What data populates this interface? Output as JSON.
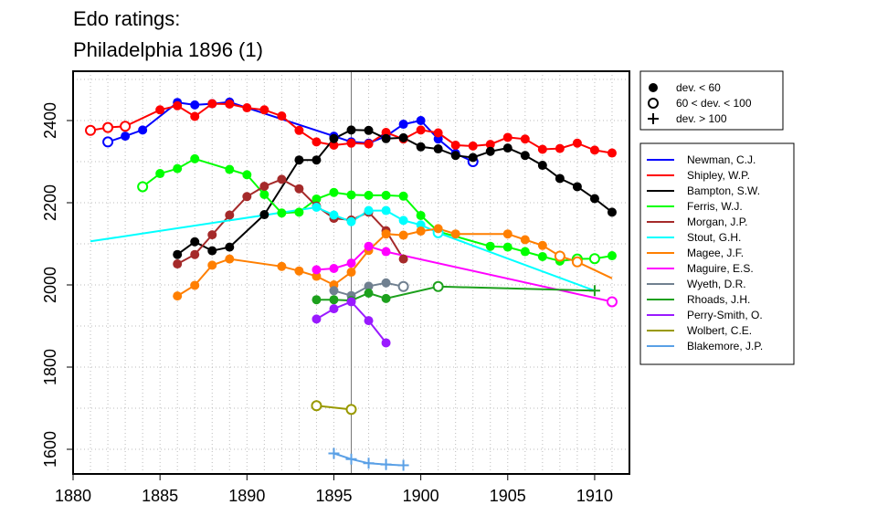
{
  "chart_data": {
    "type": "line",
    "title_line1": "Edo ratings:",
    "title_line2": "Philadelphia 1896 (1)",
    "xlabel": "",
    "ylabel": "",
    "xlim": [
      1880,
      1912
    ],
    "ylim": [
      1540,
      2520
    ],
    "x_ticks": [
      1880,
      1885,
      1890,
      1895,
      1900,
      1905,
      1910
    ],
    "y_ticks": [
      1600,
      1800,
      2000,
      2200,
      2400
    ],
    "grid": "dotted",
    "marker_year": 1896,
    "marker_legend": [
      {
        "symbol": "filled",
        "label": "dev. < 60"
      },
      {
        "symbol": "open",
        "label": "60 < dev. < 100"
      },
      {
        "symbol": "plus",
        "label": "dev. > 100"
      }
    ],
    "series": [
      {
        "name": "Newman, C.J.",
        "color": "#0000ff",
        "points": [
          {
            "x": 1882,
            "y": 2348,
            "m": "o"
          },
          {
            "x": 1883,
            "y": 2362,
            "m": "f"
          },
          {
            "x": 1884,
            "y": 2377,
            "m": "f"
          },
          {
            "x": 1886,
            "y": 2444,
            "m": "f"
          },
          {
            "x": 1887,
            "y": 2438,
            "m": "f"
          },
          {
            "x": 1888,
            "y": 2441,
            "m": "f"
          },
          {
            "x": 1889,
            "y": 2445,
            "m": "f"
          },
          {
            "x": 1895,
            "y": 2362,
            "m": "f"
          },
          {
            "x": 1896,
            "y": 2348,
            "m": "f"
          },
          {
            "x": 1897,
            "y": 2345,
            "m": "f"
          },
          {
            "x": 1898,
            "y": 2362,
            "m": "f"
          },
          {
            "x": 1899,
            "y": 2391,
            "m": "f"
          },
          {
            "x": 1900,
            "y": 2400,
            "m": "f"
          },
          {
            "x": 1901,
            "y": 2355,
            "m": "f"
          },
          {
            "x": 1902,
            "y": 2320,
            "m": "f"
          },
          {
            "x": 1903,
            "y": 2300,
            "m": "o"
          }
        ]
      },
      {
        "name": "Shipley, W.P.",
        "color": "#ff0000",
        "points": [
          {
            "x": 1881,
            "y": 2376,
            "m": "o"
          },
          {
            "x": 1882,
            "y": 2383,
            "m": "o"
          },
          {
            "x": 1883,
            "y": 2386,
            "m": "o"
          },
          {
            "x": 1885,
            "y": 2426,
            "m": "f"
          },
          {
            "x": 1886,
            "y": 2436,
            "m": "f"
          },
          {
            "x": 1887,
            "y": 2410,
            "m": "f"
          },
          {
            "x": 1888,
            "y": 2441,
            "m": "f"
          },
          {
            "x": 1889,
            "y": 2440,
            "m": "f"
          },
          {
            "x": 1890,
            "y": 2431,
            "m": "f"
          },
          {
            "x": 1891,
            "y": 2426,
            "m": "f"
          },
          {
            "x": 1892,
            "y": 2411,
            "m": "f"
          },
          {
            "x": 1893,
            "y": 2376,
            "m": "f"
          },
          {
            "x": 1894,
            "y": 2348,
            "m": "f"
          },
          {
            "x": 1895,
            "y": 2340,
            "m": "f"
          },
          {
            "x": 1896,
            "y": 2345,
            "m": "f"
          },
          {
            "x": 1897,
            "y": 2343,
            "m": "f"
          },
          {
            "x": 1898,
            "y": 2371,
            "m": "f"
          },
          {
            "x": 1899,
            "y": 2355,
            "m": "f"
          },
          {
            "x": 1900,
            "y": 2377,
            "m": "f"
          },
          {
            "x": 1901,
            "y": 2370,
            "m": "f"
          },
          {
            "x": 1902,
            "y": 2340,
            "m": "f"
          },
          {
            "x": 1903,
            "y": 2338,
            "m": "f"
          },
          {
            "x": 1904,
            "y": 2342,
            "m": "f"
          },
          {
            "x": 1905,
            "y": 2359,
            "m": "f"
          },
          {
            "x": 1906,
            "y": 2355,
            "m": "f"
          },
          {
            "x": 1907,
            "y": 2330,
            "m": "f"
          },
          {
            "x": 1908,
            "y": 2332,
            "m": "f"
          },
          {
            "x": 1909,
            "y": 2345,
            "m": "f"
          },
          {
            "x": 1910,
            "y": 2328,
            "m": "f"
          },
          {
            "x": 1911,
            "y": 2321,
            "m": "f"
          }
        ]
      },
      {
        "name": "Bampton, S.W.",
        "color": "#000000",
        "points": [
          {
            "x": 1886,
            "y": 2074,
            "m": "f"
          },
          {
            "x": 1887,
            "y": 2105,
            "m": "f"
          },
          {
            "x": 1888,
            "y": 2083,
            "m": "f"
          },
          {
            "x": 1889,
            "y": 2092,
            "m": "f"
          },
          {
            "x": 1891,
            "y": 2171,
            "m": "f"
          },
          {
            "x": 1893,
            "y": 2304,
            "m": "f"
          },
          {
            "x": 1894,
            "y": 2304,
            "m": "f"
          },
          {
            "x": 1895,
            "y": 2356,
            "m": "f"
          },
          {
            "x": 1896,
            "y": 2377,
            "m": "f"
          },
          {
            "x": 1897,
            "y": 2376,
            "m": "f"
          },
          {
            "x": 1898,
            "y": 2356,
            "m": "f"
          },
          {
            "x": 1899,
            "y": 2358,
            "m": "f"
          },
          {
            "x": 1900,
            "y": 2336,
            "m": "f"
          },
          {
            "x": 1901,
            "y": 2331,
            "m": "f"
          },
          {
            "x": 1902,
            "y": 2315,
            "m": "f"
          },
          {
            "x": 1903,
            "y": 2310,
            "m": "f"
          },
          {
            "x": 1904,
            "y": 2325,
            "m": "f"
          },
          {
            "x": 1905,
            "y": 2333,
            "m": "f"
          },
          {
            "x": 1906,
            "y": 2315,
            "m": "f"
          },
          {
            "x": 1907,
            "y": 2291,
            "m": "f"
          },
          {
            "x": 1908,
            "y": 2259,
            "m": "f"
          },
          {
            "x": 1909,
            "y": 2239,
            "m": "f"
          },
          {
            "x": 1910,
            "y": 2210,
            "m": "f"
          },
          {
            "x": 1911,
            "y": 2177,
            "m": "f"
          }
        ]
      },
      {
        "name": "Ferris, W.J.",
        "color": "#00ff00",
        "points": [
          {
            "x": 1884,
            "y": 2239,
            "m": "o"
          },
          {
            "x": 1885,
            "y": 2271,
            "m": "f"
          },
          {
            "x": 1886,
            "y": 2283,
            "m": "f"
          },
          {
            "x": 1887,
            "y": 2307,
            "m": "f"
          },
          {
            "x": 1889,
            "y": 2281,
            "m": "f"
          },
          {
            "x": 1890,
            "y": 2268,
            "m": "f"
          },
          {
            "x": 1891,
            "y": 2220,
            "m": "f"
          },
          {
            "x": 1892,
            "y": 2175,
            "m": "f"
          },
          {
            "x": 1893,
            "y": 2177,
            "m": "f"
          },
          {
            "x": 1894,
            "y": 2209,
            "m": "f"
          },
          {
            "x": 1895,
            "y": 2225,
            "m": "f"
          },
          {
            "x": 1896,
            "y": 2219,
            "m": "f"
          },
          {
            "x": 1897,
            "y": 2218,
            "m": "f"
          },
          {
            "x": 1898,
            "y": 2218,
            "m": "f"
          },
          {
            "x": 1899,
            "y": 2216,
            "m": "f"
          },
          {
            "x": 1900,
            "y": 2169,
            "m": "f"
          },
          {
            "x": 1901,
            "y": 2130,
            "m": "f"
          },
          {
            "x": 1904,
            "y": 2094,
            "m": "f"
          },
          {
            "x": 1905,
            "y": 2092,
            "m": "f"
          },
          {
            "x": 1906,
            "y": 2081,
            "m": "f"
          },
          {
            "x": 1907,
            "y": 2069,
            "m": "f"
          },
          {
            "x": 1908,
            "y": 2058,
            "m": "f"
          },
          {
            "x": 1909,
            "y": 2063,
            "m": "o"
          },
          {
            "x": 1910,
            "y": 2064,
            "m": "o"
          },
          {
            "x": 1911,
            "y": 2071,
            "m": "f"
          }
        ]
      },
      {
        "name": "Morgan, J.P.",
        "color": "#a52a2a",
        "points": [
          {
            "x": 1886,
            "y": 2051,
            "m": "f"
          },
          {
            "x": 1887,
            "y": 2074,
            "m": "f"
          },
          {
            "x": 1888,
            "y": 2122,
            "m": "f"
          },
          {
            "x": 1889,
            "y": 2170,
            "m": "f"
          },
          {
            "x": 1890,
            "y": 2215,
            "m": "f"
          },
          {
            "x": 1891,
            "y": 2240,
            "m": "f"
          },
          {
            "x": 1892,
            "y": 2257,
            "m": "f"
          },
          {
            "x": 1893,
            "y": 2234,
            "m": "f"
          },
          {
            "x": 1894,
            "y": 2192,
            "m": "f"
          },
          {
            "x": 1895,
            "y": 2162,
            "m": "f"
          },
          {
            "x": 1896,
            "y": 2158,
            "m": "f"
          },
          {
            "x": 1897,
            "y": 2177,
            "m": "f"
          },
          {
            "x": 1898,
            "y": 2132,
            "m": "f"
          },
          {
            "x": 1899,
            "y": 2063,
            "m": "f"
          }
        ]
      },
      {
        "name": "Stout, G.H.",
        "color": "#00ffff",
        "points": [
          {
            "x": 1881,
            "y": 2106,
            "m": "l"
          },
          {
            "x": 1894,
            "y": 2189,
            "m": "f"
          },
          {
            "x": 1895,
            "y": 2170,
            "m": "f"
          },
          {
            "x": 1896,
            "y": 2154,
            "m": "f"
          },
          {
            "x": 1897,
            "y": 2181,
            "m": "f"
          },
          {
            "x": 1898,
            "y": 2181,
            "m": "f"
          },
          {
            "x": 1899,
            "y": 2157,
            "m": "f"
          },
          {
            "x": 1900,
            "y": 2146,
            "m": "f"
          },
          {
            "x": 1901,
            "y": 2127,
            "m": "o"
          },
          {
            "x": 1910,
            "y": 1986,
            "m": "l"
          }
        ]
      },
      {
        "name": "Magee, J.F.",
        "color": "#ff7f00",
        "points": [
          {
            "x": 1886,
            "y": 1973,
            "m": "f"
          },
          {
            "x": 1887,
            "y": 1999,
            "m": "f"
          },
          {
            "x": 1888,
            "y": 2048,
            "m": "f"
          },
          {
            "x": 1889,
            "y": 2063,
            "m": "f"
          },
          {
            "x": 1892,
            "y": 2045,
            "m": "f"
          },
          {
            "x": 1893,
            "y": 2034,
            "m": "f"
          },
          {
            "x": 1894,
            "y": 2021,
            "m": "f"
          },
          {
            "x": 1895,
            "y": 2000,
            "m": "f"
          },
          {
            "x": 1896,
            "y": 2031,
            "m": "f"
          },
          {
            "x": 1897,
            "y": 2084,
            "m": "f"
          },
          {
            "x": 1898,
            "y": 2124,
            "m": "f"
          },
          {
            "x": 1899,
            "y": 2121,
            "m": "f"
          },
          {
            "x": 1900,
            "y": 2131,
            "m": "f"
          },
          {
            "x": 1901,
            "y": 2137,
            "m": "f"
          },
          {
            "x": 1902,
            "y": 2124,
            "m": "f"
          },
          {
            "x": 1905,
            "y": 2124,
            "m": "f"
          },
          {
            "x": 1906,
            "y": 2110,
            "m": "f"
          },
          {
            "x": 1907,
            "y": 2096,
            "m": "f"
          },
          {
            "x": 1908,
            "y": 2070,
            "m": "o"
          },
          {
            "x": 1909,
            "y": 2056,
            "m": "o"
          },
          {
            "x": 1911,
            "y": 2016,
            "m": "l"
          }
        ]
      },
      {
        "name": "Maguire, E.S.",
        "color": "#ff00ff",
        "points": [
          {
            "x": 1894,
            "y": 2037,
            "m": "f"
          },
          {
            "x": 1895,
            "y": 2040,
            "m": "f"
          },
          {
            "x": 1896,
            "y": 2053,
            "m": "f"
          },
          {
            "x": 1897,
            "y": 2094,
            "m": "f"
          },
          {
            "x": 1898,
            "y": 2081,
            "m": "f"
          },
          {
            "x": 1911,
            "y": 1959,
            "m": "o"
          }
        ]
      },
      {
        "name": "Wyeth, D.R.",
        "color": "#708090",
        "points": [
          {
            "x": 1895,
            "y": 1986,
            "m": "f"
          },
          {
            "x": 1896,
            "y": 1974,
            "m": "f"
          },
          {
            "x": 1897,
            "y": 1997,
            "m": "f"
          },
          {
            "x": 1898,
            "y": 2005,
            "m": "f"
          },
          {
            "x": 1899,
            "y": 1996,
            "m": "o"
          }
        ]
      },
      {
        "name": "Rhoads, J.H.",
        "color": "#1ca01c",
        "points": [
          {
            "x": 1894,
            "y": 1964,
            "m": "f"
          },
          {
            "x": 1895,
            "y": 1964,
            "m": "f"
          },
          {
            "x": 1896,
            "y": 1962,
            "m": "f"
          },
          {
            "x": 1897,
            "y": 1980,
            "m": "f"
          },
          {
            "x": 1898,
            "y": 1967,
            "m": "f"
          },
          {
            "x": 1901,
            "y": 1996,
            "m": "o"
          },
          {
            "x": 1910,
            "y": 1986,
            "m": "p"
          }
        ]
      },
      {
        "name": "Perry-Smith, O.",
        "color": "#9a1aff",
        "points": [
          {
            "x": 1894,
            "y": 1917,
            "m": "f"
          },
          {
            "x": 1895,
            "y": 1942,
            "m": "f"
          },
          {
            "x": 1896,
            "y": 1959,
            "m": "f"
          },
          {
            "x": 1897,
            "y": 1913,
            "m": "f"
          },
          {
            "x": 1898,
            "y": 1859,
            "m": "f"
          }
        ]
      },
      {
        "name": "Wolbert, C.E.",
        "color": "#999900",
        "points": [
          {
            "x": 1894,
            "y": 1706,
            "m": "o"
          },
          {
            "x": 1896,
            "y": 1697,
            "m": "o"
          }
        ]
      },
      {
        "name": "Blakemore, J.P.",
        "color": "#5aa0e6",
        "points": [
          {
            "x": 1895,
            "y": 1590,
            "m": "p"
          },
          {
            "x": 1896,
            "y": 1576,
            "m": "p"
          },
          {
            "x": 1897,
            "y": 1566,
            "m": "p"
          },
          {
            "x": 1898,
            "y": 1563,
            "m": "p"
          },
          {
            "x": 1899,
            "y": 1561,
            "m": "p"
          }
        ]
      }
    ]
  }
}
